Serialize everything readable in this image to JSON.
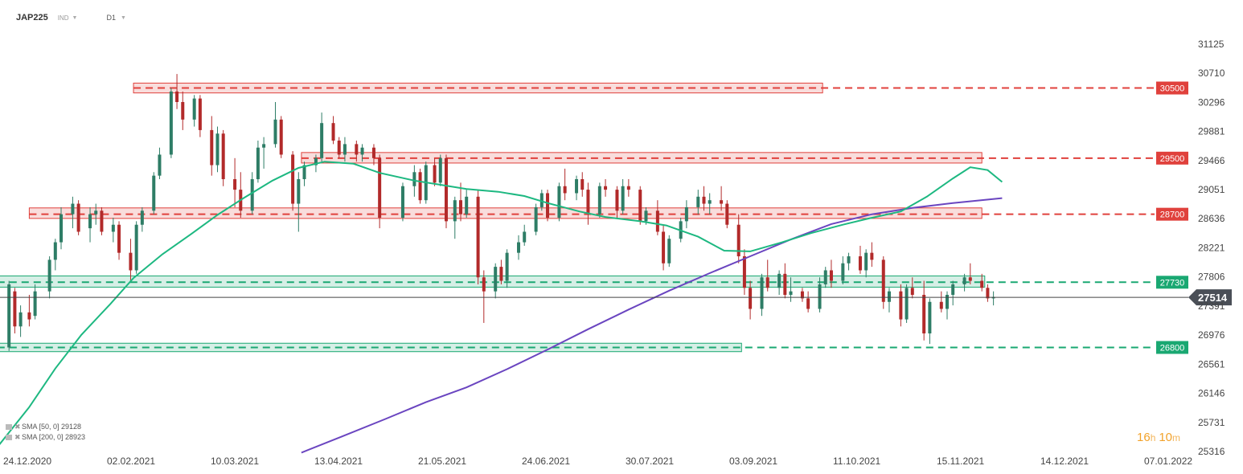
{
  "header": {
    "symbol": "JAP225",
    "market_tag": "IND",
    "timeframe": "D1"
  },
  "timer": {
    "hours": "16",
    "h_unit": "h",
    "minutes": "10",
    "m_unit": "m"
  },
  "colors": {
    "bull_candle": "#2e7d66",
    "bear_candle": "#b22a2a",
    "sma50": "#1db881",
    "sma200": "#6a45c0",
    "resistance": "#e0413c",
    "support": "#1aa872",
    "price_line": "#444444",
    "price_tag": "#4a4f57"
  },
  "chart_data": {
    "type": "candlestick",
    "y_ticks": [
      31125,
      30710,
      30296,
      29881,
      29466,
      29051,
      28636,
      28221,
      27806,
      27391,
      26976,
      26561,
      26146,
      25731,
      25316
    ],
    "ylim": [
      25316,
      31125
    ],
    "x_ticks": [
      "24.12.2020",
      "02.02.2021",
      "10.03.2021",
      "13.04.2021",
      "21.05.2021",
      "24.06.2021",
      "30.07.2021",
      "03.09.2021",
      "11.10.2021",
      "15.11.2021",
      "14.12.2021",
      "07.01.2022"
    ],
    "current_price": 27514,
    "resistance_levels": [
      {
        "label": "30500",
        "value": 30500,
        "zone_low": 30430,
        "zone_high": 30570,
        "zone_from": "2021-02-02",
        "zone_to": "2021-09-28"
      },
      {
        "label": "29500",
        "value": 29500,
        "zone_low": 29430,
        "zone_high": 29580,
        "zone_from": "2021-04-01",
        "zone_to": "2021-11-22"
      },
      {
        "label": "28700",
        "value": 28700,
        "zone_low": 28640,
        "zone_high": 28790,
        "zone_from": "2020-12-28",
        "zone_to": "2021-11-22"
      }
    ],
    "support_levels": [
      {
        "label": "27730",
        "value": 27730,
        "zone_low": 27660,
        "zone_high": 27820,
        "zone_from": "2020-12-17",
        "zone_to": "2021-11-23"
      },
      {
        "label": "26800",
        "value": 26800,
        "zone_low": 26740,
        "zone_high": 26860,
        "zone_from": "2020-12-17",
        "zone_to": "2021-08-31"
      }
    ],
    "indicators": [
      {
        "name": "SMA",
        "params": "[50, 0]",
        "value": "29128"
      },
      {
        "name": "SMA",
        "params": "[200, 0]",
        "value": "28923"
      }
    ],
    "sma50": [
      [
        "2020-12-17",
        25380
      ],
      [
        "2020-12-28",
        25950
      ],
      [
        "2021-01-06",
        26500
      ],
      [
        "2021-01-15",
        26980
      ],
      [
        "2021-01-25",
        27420
      ],
      [
        "2021-02-02",
        27790
      ],
      [
        "2021-02-12",
        28130
      ],
      [
        "2021-02-22",
        28420
      ],
      [
        "2021-03-03",
        28690
      ],
      [
        "2021-03-12",
        28930
      ],
      [
        "2021-03-22",
        29180
      ],
      [
        "2021-03-31",
        29360
      ],
      [
        "2021-04-09",
        29450
      ],
      [
        "2021-04-19",
        29420
      ],
      [
        "2021-04-28",
        29290
      ],
      [
        "2021-05-10",
        29180
      ],
      [
        "2021-05-19",
        29120
      ],
      [
        "2021-05-28",
        29060
      ],
      [
        "2021-06-08",
        29020
      ],
      [
        "2021-06-17",
        28960
      ],
      [
        "2021-06-25",
        28860
      ],
      [
        "2021-07-06",
        28740
      ],
      [
        "2021-07-15",
        28660
      ],
      [
        "2021-07-27",
        28600
      ],
      [
        "2021-08-05",
        28540
      ],
      [
        "2021-08-16",
        28380
      ],
      [
        "2021-08-25",
        28180
      ],
      [
        "2021-09-03",
        28170
      ],
      [
        "2021-09-14",
        28300
      ],
      [
        "2021-09-24",
        28430
      ],
      [
        "2021-10-05",
        28550
      ],
      [
        "2021-10-14",
        28640
      ],
      [
        "2021-10-25",
        28740
      ],
      [
        "2021-11-03",
        28950
      ],
      [
        "2021-11-12",
        29210
      ],
      [
        "2021-11-18",
        29370
      ],
      [
        "2021-11-24",
        29330
      ],
      [
        "2021-11-29",
        29160
      ]
    ],
    "sma200": [
      [
        "2021-04-01",
        25300
      ],
      [
        "2021-04-15",
        25530
      ],
      [
        "2021-04-30",
        25780
      ],
      [
        "2021-05-14",
        26020
      ],
      [
        "2021-05-28",
        26230
      ],
      [
        "2021-06-11",
        26490
      ],
      [
        "2021-06-25",
        26770
      ],
      [
        "2021-07-09",
        27060
      ],
      [
        "2021-07-23",
        27340
      ],
      [
        "2021-08-06",
        27610
      ],
      [
        "2021-08-20",
        27860
      ],
      [
        "2021-09-03",
        28100
      ],
      [
        "2021-09-17",
        28340
      ],
      [
        "2021-10-01",
        28560
      ],
      [
        "2021-10-15",
        28700
      ],
      [
        "2021-10-29",
        28790
      ],
      [
        "2021-11-12",
        28860
      ],
      [
        "2021-11-29",
        28930
      ]
    ],
    "ohlc": [
      [
        "2020-12-17",
        26650,
        26900,
        26550,
        26800
      ],
      [
        "2020-12-21",
        26800,
        27750,
        26750,
        27700
      ],
      [
        "2020-12-23",
        27600,
        27650,
        27000,
        27100
      ],
      [
        "2020-12-25",
        27100,
        27400,
        26950,
        27300
      ],
      [
        "2020-12-28",
        27300,
        27550,
        27100,
        27200
      ],
      [
        "2020-12-30",
        27250,
        27700,
        27200,
        27600
      ],
      [
        "2021-01-04",
        27600,
        28100,
        27500,
        28050
      ],
      [
        "2021-01-06",
        28050,
        28350,
        27900,
        28300
      ],
      [
        "2021-01-08",
        28300,
        28800,
        28200,
        28700
      ],
      [
        "2021-01-12",
        28700,
        28950,
        28500,
        28850
      ],
      [
        "2021-01-14",
        28850,
        28900,
        28400,
        28450
      ],
      [
        "2021-01-18",
        28500,
        28800,
        28300,
        28700
      ],
      [
        "2021-01-20",
        28700,
        28850,
        28550,
        28750
      ],
      [
        "2021-01-22",
        28750,
        28800,
        28400,
        28450
      ],
      [
        "2021-01-26",
        28450,
        28650,
        28300,
        28550
      ],
      [
        "2021-01-28",
        28550,
        28600,
        28050,
        28150
      ],
      [
        "2021-02-01",
        28150,
        28350,
        27750,
        27900
      ],
      [
        "2021-02-03",
        27900,
        28600,
        27850,
        28550
      ],
      [
        "2021-02-05",
        28550,
        28800,
        28450,
        28750
      ],
      [
        "2021-02-09",
        28750,
        29300,
        28700,
        29250
      ],
      [
        "2021-02-11",
        29250,
        29650,
        29200,
        29550
      ],
      [
        "2021-02-15",
        29550,
        30500,
        29500,
        30450
      ],
      [
        "2021-02-17",
        30450,
        30700,
        30200,
        30300
      ],
      [
        "2021-02-19",
        30300,
        30450,
        29900,
        30050
      ],
      [
        "2021-02-23",
        30050,
        30400,
        29950,
        30350
      ],
      [
        "2021-02-25",
        30350,
        30400,
        29800,
        29900
      ],
      [
        "2021-03-01",
        29900,
        30100,
        29250,
        29400
      ],
      [
        "2021-03-03",
        29400,
        29950,
        29300,
        29850
      ],
      [
        "2021-03-05",
        29850,
        29900,
        29100,
        29200
      ],
      [
        "2021-03-09",
        29200,
        29500,
        28800,
        29050
      ],
      [
        "2021-03-11",
        29050,
        29300,
        28650,
        28750
      ],
      [
        "2021-03-15",
        28750,
        29300,
        28700,
        29200
      ],
      [
        "2021-03-17",
        29200,
        29750,
        29150,
        29650
      ],
      [
        "2021-03-19",
        29650,
        29800,
        29350,
        29700
      ],
      [
        "2021-03-23",
        29700,
        30300,
        29650,
        30050
      ],
      [
        "2021-03-25",
        30050,
        30100,
        29500,
        29550
      ],
      [
        "2021-03-29",
        29550,
        29600,
        28750,
        28850
      ],
      [
        "2021-03-31",
        28850,
        29300,
        28450,
        29200
      ],
      [
        "2021-04-02",
        29200,
        29450,
        29100,
        29400
      ],
      [
        "2021-04-06",
        29400,
        29550,
        29300,
        29500
      ],
      [
        "2021-04-08",
        29500,
        30150,
        29450,
        30000
      ],
      [
        "2021-04-12",
        30000,
        30100,
        29700,
        29750
      ],
      [
        "2021-04-14",
        29750,
        29800,
        29500,
        29550
      ],
      [
        "2021-04-16",
        29550,
        29800,
        29450,
        29700
      ],
      [
        "2021-04-20",
        29700,
        29750,
        29450,
        29550
      ],
      [
        "2021-04-22",
        29550,
        29700,
        29450,
        29650
      ],
      [
        "2021-04-26",
        29650,
        29700,
        29400,
        29500
      ],
      [
        "2021-04-28",
        29500,
        29550,
        28500,
        28650
      ],
      [
        "2021-05-06",
        28650,
        29150,
        28600,
        29100
      ],
      [
        "2021-05-10",
        29100,
        29400,
        28950,
        29300
      ],
      [
        "2021-05-12",
        29300,
        29350,
        28850,
        28900
      ],
      [
        "2021-05-14",
        28900,
        29450,
        28850,
        29400
      ],
      [
        "2021-05-17",
        29400,
        29500,
        29100,
        29150
      ],
      [
        "2021-05-19",
        29150,
        29550,
        29100,
        29500
      ],
      [
        "2021-05-21",
        29500,
        29550,
        28500,
        28600
      ],
      [
        "2021-05-24",
        28600,
        28950,
        28350,
        28900
      ],
      [
        "2021-05-26",
        28900,
        29150,
        28600,
        28700
      ],
      [
        "2021-05-28",
        28700,
        29050,
        28650,
        28950
      ],
      [
        "2021-06-01",
        28950,
        29050,
        27700,
        27800
      ],
      [
        "2021-06-03",
        27800,
        27900,
        27150,
        27600
      ],
      [
        "2021-06-07",
        27600,
        28000,
        27500,
        27950
      ],
      [
        "2021-06-09",
        27950,
        28050,
        27700,
        27750
      ],
      [
        "2021-06-11",
        27750,
        28200,
        27650,
        28150
      ],
      [
        "2021-06-15",
        28150,
        28400,
        28050,
        28300
      ],
      [
        "2021-06-17",
        28300,
        28550,
        28250,
        28450
      ],
      [
        "2021-06-21",
        28450,
        28850,
        28400,
        28800
      ],
      [
        "2021-06-23",
        28800,
        29050,
        28750,
        29000
      ],
      [
        "2021-06-25",
        29000,
        29050,
        28600,
        28650
      ],
      [
        "2021-06-29",
        28650,
        29150,
        28600,
        29100
      ],
      [
        "2021-07-01",
        29100,
        29350,
        28900,
        29000
      ],
      [
        "2021-07-05",
        29000,
        29250,
        28900,
        29200
      ],
      [
        "2021-07-07",
        29200,
        29300,
        28950,
        29050
      ],
      [
        "2021-07-09",
        29050,
        29150,
        28550,
        28700
      ],
      [
        "2021-07-13",
        28700,
        29150,
        28650,
        29100
      ],
      [
        "2021-07-15",
        29100,
        29200,
        28950,
        29050
      ],
      [
        "2021-07-19",
        29050,
        29100,
        28650,
        28750
      ],
      [
        "2021-07-21",
        28750,
        29200,
        28700,
        29100
      ],
      [
        "2021-07-23",
        29100,
        29200,
        28950,
        29050
      ],
      [
        "2021-07-27",
        29050,
        29100,
        28550,
        28600
      ],
      [
        "2021-07-29",
        28600,
        28800,
        28550,
        28750
      ],
      [
        "2021-08-02",
        28750,
        28900,
        28400,
        28450
      ],
      [
        "2021-08-04",
        28450,
        28550,
        27900,
        28000
      ],
      [
        "2021-08-06",
        28000,
        28400,
        27950,
        28350
      ],
      [
        "2021-08-10",
        28350,
        28650,
        28300,
        28600
      ],
      [
        "2021-08-12",
        28600,
        28900,
        28500,
        28800
      ],
      [
        "2021-08-16",
        28800,
        29050,
        28700,
        28950
      ],
      [
        "2021-08-18",
        28950,
        29100,
        28750,
        28850
      ],
      [
        "2021-08-20",
        28850,
        29000,
        28700,
        28900
      ],
      [
        "2021-08-24",
        28900,
        29100,
        28750,
        28850
      ],
      [
        "2021-08-26",
        28850,
        28900,
        28500,
        28550
      ],
      [
        "2021-08-30",
        28550,
        28700,
        28000,
        28100
      ],
      [
        "2021-09-01",
        28100,
        28200,
        27550,
        27650
      ],
      [
        "2021-09-03",
        27650,
        27750,
        27200,
        27350
      ],
      [
        "2021-09-07",
        27350,
        27850,
        27250,
        27800
      ],
      [
        "2021-09-09",
        27800,
        28050,
        27600,
        27650
      ],
      [
        "2021-09-13",
        27650,
        27900,
        27550,
        27850
      ],
      [
        "2021-09-15",
        27850,
        28000,
        27500,
        27550
      ],
      [
        "2021-09-17",
        27550,
        27800,
        27450,
        27600
      ],
      [
        "2021-09-21",
        27600,
        27650,
        27450,
        27500
      ],
      [
        "2021-09-23",
        27500,
        27600,
        27300,
        27350
      ],
      [
        "2021-09-27",
        27350,
        27800,
        27300,
        27700
      ],
      [
        "2021-09-29",
        27700,
        27950,
        27650,
        27900
      ],
      [
        "2021-10-01",
        27900,
        28050,
        27650,
        27750
      ],
      [
        "2021-10-05",
        27750,
        28100,
        27700,
        28000
      ],
      [
        "2021-10-07",
        28000,
        28150,
        27900,
        28100
      ],
      [
        "2021-10-11",
        28100,
        28250,
        27850,
        27900
      ],
      [
        "2021-10-13",
        27900,
        28200,
        27800,
        28150
      ],
      [
        "2021-10-15",
        28150,
        28300,
        27950,
        28050
      ],
      [
        "2021-10-19",
        28050,
        28100,
        27350,
        27450
      ],
      [
        "2021-10-21",
        27450,
        27650,
        27300,
        27600
      ],
      [
        "2021-10-25",
        27600,
        27700,
        27100,
        27200
      ],
      [
        "2021-10-27",
        27200,
        27700,
        27150,
        27650
      ],
      [
        "2021-10-29",
        27650,
        27800,
        27500,
        27550
      ],
      [
        "2021-11-02",
        27550,
        27750,
        26900,
        27000
      ],
      [
        "2021-11-04",
        27000,
        27500,
        26850,
        27450
      ],
      [
        "2021-11-08",
        27450,
        27600,
        27300,
        27350
      ],
      [
        "2021-11-10",
        27350,
        27600,
        27200,
        27550
      ],
      [
        "2021-11-12",
        27550,
        27750,
        27400,
        27700
      ],
      [
        "2021-11-16",
        27700,
        27850,
        27600,
        27800
      ],
      [
        "2021-11-18",
        27800,
        28000,
        27700,
        27750
      ],
      [
        "2021-11-22",
        27750,
        27850,
        27600,
        27650
      ],
      [
        "2021-11-24",
        27650,
        27700,
        27450,
        27500
      ],
      [
        "2021-11-26",
        27500,
        27600,
        27400,
        27520
      ]
    ]
  }
}
